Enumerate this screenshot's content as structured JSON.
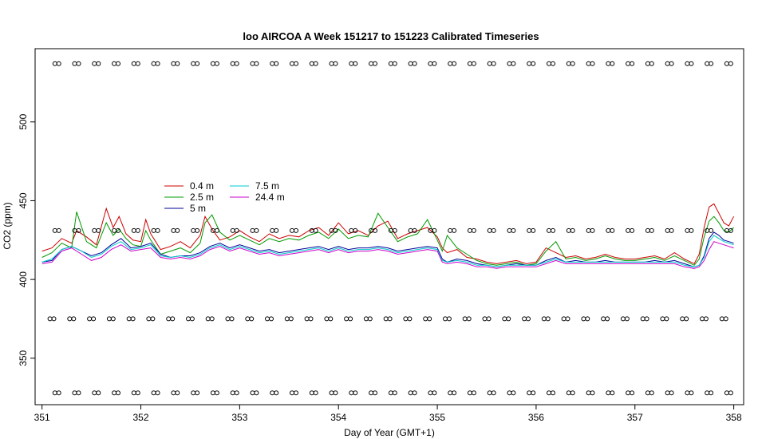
{
  "chart_data": {
    "type": "line",
    "title": "loo AIRCOA A  Week 151217 to 151223  Calibrated Timeseries",
    "xlabel": "Day of Year (GMT+1)",
    "ylabel": "CO2 (ppm)",
    "xlim": [
      350.93,
      358.1
    ],
    "ylim": [
      320.5,
      546.5
    ],
    "x_ticks": [
      "351",
      "352",
      "353",
      "354",
      "355",
      "356",
      "357",
      "358"
    ],
    "y_ticks": [
      "350",
      "400",
      "450",
      "500"
    ],
    "legend_position": "upper-left",
    "series": [
      {
        "name": "0.4 m",
        "color": "#cc0000",
        "x": [
          351.0,
          351.1,
          351.2,
          351.3,
          351.35,
          351.45,
          351.55,
          351.65,
          351.72,
          351.78,
          351.85,
          351.92,
          352.0,
          352.05,
          352.1,
          352.2,
          352.3,
          352.4,
          352.5,
          352.6,
          352.65,
          352.72,
          352.8,
          352.9,
          353.0,
          353.1,
          353.2,
          353.3,
          353.4,
          353.5,
          353.6,
          353.7,
          353.8,
          353.9,
          354.0,
          354.1,
          354.2,
          354.3,
          354.4,
          354.5,
          354.6,
          354.7,
          354.8,
          354.9,
          355.0,
          355.05,
          355.1,
          355.2,
          355.3,
          355.4,
          355.5,
          355.6,
          355.7,
          355.8,
          355.9,
          356.0,
          356.1,
          356.2,
          356.3,
          356.4,
          356.5,
          356.6,
          356.7,
          356.8,
          356.9,
          357.0,
          357.1,
          357.2,
          357.3,
          357.4,
          357.5,
          357.6,
          357.65,
          357.7,
          357.75,
          357.8,
          357.85,
          357.9,
          357.95,
          358.0
        ],
        "y": [
          418,
          420,
          426,
          423,
          431,
          427,
          422,
          445,
          433,
          440,
          429,
          425,
          424,
          438,
          429,
          419,
          421,
          424,
          420,
          428,
          440,
          432,
          425,
          427,
          431,
          427,
          424,
          429,
          426,
          428,
          427,
          431,
          433,
          428,
          436,
          429,
          431,
          428,
          434,
          437,
          426,
          429,
          431,
          433,
          427,
          420,
          417,
          419,
          414,
          413,
          411,
          410,
          411,
          412,
          410,
          411,
          420,
          417,
          414,
          415,
          413,
          414,
          416,
          414,
          413,
          413,
          414,
          415,
          413,
          417,
          413,
          410,
          416,
          433,
          446,
          448,
          442,
          436,
          434,
          440
        ]
      },
      {
        "name": "2.5 m",
        "color": "#009900",
        "x": [
          351.0,
          351.1,
          351.2,
          351.3,
          351.35,
          351.45,
          351.55,
          351.65,
          351.72,
          351.78,
          351.85,
          351.92,
          352.0,
          352.05,
          352.1,
          352.2,
          352.3,
          352.4,
          352.5,
          352.6,
          352.65,
          352.72,
          352.8,
          352.9,
          353.0,
          353.1,
          353.2,
          353.3,
          353.4,
          353.5,
          353.6,
          353.7,
          353.8,
          353.9,
          354.0,
          354.1,
          354.2,
          354.3,
          354.4,
          354.5,
          354.6,
          354.7,
          354.8,
          354.9,
          355.0,
          355.05,
          355.1,
          355.2,
          355.3,
          355.4,
          355.5,
          355.6,
          355.7,
          355.8,
          355.9,
          356.0,
          356.1,
          356.2,
          356.3,
          356.4,
          356.5,
          356.6,
          356.7,
          356.8,
          356.9,
          357.0,
          357.1,
          357.2,
          357.3,
          357.4,
          357.5,
          357.6,
          357.65,
          357.7,
          357.75,
          357.8,
          357.85,
          357.9,
          357.95,
          358.0
        ],
        "y": [
          414,
          417,
          423,
          420,
          443,
          424,
          420,
          436,
          428,
          432,
          426,
          422,
          421,
          431,
          425,
          416,
          418,
          420,
          417,
          423,
          436,
          441,
          430,
          425,
          428,
          425,
          422,
          426,
          424,
          426,
          425,
          428,
          430,
          426,
          432,
          426,
          428,
          427,
          442,
          433,
          424,
          427,
          429,
          438,
          425,
          418,
          428,
          420,
          416,
          412,
          410,
          409,
          410,
          411,
          409,
          410,
          418,
          424,
          413,
          414,
          412,
          413,
          415,
          413,
          412,
          412,
          413,
          414,
          412,
          415,
          412,
          409,
          413,
          427,
          437,
          440,
          436,
          431,
          430,
          433
        ]
      },
      {
        "name": "5 m",
        "color": "#000099",
        "x": [
          351.0,
          351.1,
          351.2,
          351.3,
          351.4,
          351.5,
          351.6,
          351.7,
          351.8,
          351.9,
          352.0,
          352.1,
          352.2,
          352.3,
          352.4,
          352.5,
          352.6,
          352.7,
          352.8,
          352.9,
          353.0,
          353.1,
          353.2,
          353.3,
          353.4,
          353.5,
          353.6,
          353.7,
          353.8,
          353.9,
          354.0,
          354.1,
          354.2,
          354.3,
          354.4,
          354.5,
          354.6,
          354.7,
          354.8,
          354.9,
          355.0,
          355.05,
          355.1,
          355.2,
          355.3,
          355.4,
          355.5,
          355.6,
          355.7,
          355.8,
          355.9,
          356.0,
          356.1,
          356.2,
          356.3,
          356.4,
          356.5,
          356.6,
          356.7,
          356.8,
          356.9,
          357.0,
          357.1,
          357.2,
          357.3,
          357.4,
          357.5,
          357.6,
          357.65,
          357.7,
          357.75,
          357.8,
          357.85,
          357.9,
          357.95,
          358.0
        ],
        "y": [
          411,
          412,
          419,
          421,
          418,
          415,
          417,
          422,
          426,
          420,
          421,
          423,
          416,
          414,
          415,
          415,
          417,
          421,
          423,
          420,
          422,
          420,
          418,
          419,
          417,
          418,
          419,
          420,
          421,
          419,
          421,
          419,
          420,
          420,
          421,
          420,
          418,
          419,
          420,
          421,
          420,
          413,
          411,
          413,
          412,
          410,
          409,
          408,
          409,
          410,
          409,
          409,
          412,
          414,
          411,
          412,
          411,
          411,
          412,
          411,
          411,
          411,
          411,
          412,
          411,
          412,
          410,
          408,
          409,
          415,
          426,
          430,
          428,
          425,
          424,
          423
        ]
      },
      {
        "name": "7.5 m",
        "color": "#00cccc",
        "x": [
          351.0,
          351.1,
          351.2,
          351.3,
          351.4,
          351.5,
          351.6,
          351.7,
          351.8,
          351.9,
          352.0,
          352.1,
          352.2,
          352.3,
          352.4,
          352.5,
          352.6,
          352.7,
          352.8,
          352.9,
          353.0,
          353.1,
          353.2,
          353.3,
          353.4,
          353.5,
          353.6,
          353.7,
          353.8,
          353.9,
          354.0,
          354.1,
          354.2,
          354.3,
          354.4,
          354.5,
          354.6,
          354.7,
          354.8,
          354.9,
          355.0,
          355.05,
          355.1,
          355.2,
          355.3,
          355.4,
          355.5,
          355.6,
          355.7,
          355.8,
          355.9,
          356.0,
          356.1,
          356.2,
          356.3,
          356.4,
          356.5,
          356.6,
          356.7,
          356.8,
          356.9,
          357.0,
          357.1,
          357.2,
          357.3,
          357.4,
          357.5,
          357.6,
          357.65,
          357.7,
          357.75,
          357.8,
          357.85,
          357.9,
          357.95,
          358.0
        ],
        "y": [
          411,
          413,
          419,
          421,
          418,
          414,
          416,
          421,
          424,
          419,
          420,
          422,
          415,
          414,
          415,
          414,
          416,
          420,
          422,
          419,
          421,
          419,
          417,
          418,
          416,
          417,
          418,
          419,
          420,
          418,
          420,
          418,
          419,
          419,
          420,
          419,
          417,
          418,
          419,
          420,
          419,
          412,
          411,
          412,
          411,
          409,
          409,
          408,
          409,
          409,
          409,
          409,
          411,
          413,
          411,
          411,
          411,
          411,
          411,
          411,
          411,
          411,
          411,
          411,
          411,
          411,
          409,
          408,
          409,
          414,
          424,
          428,
          426,
          424,
          423,
          422
        ]
      },
      {
        "name": "24.4 m",
        "color": "#cc00cc",
        "x": [
          351.0,
          351.1,
          351.2,
          351.3,
          351.4,
          351.5,
          351.6,
          351.7,
          351.8,
          351.9,
          352.0,
          352.1,
          352.2,
          352.3,
          352.4,
          352.5,
          352.6,
          352.7,
          352.8,
          352.9,
          353.0,
          353.1,
          353.2,
          353.3,
          353.4,
          353.5,
          353.6,
          353.7,
          353.8,
          353.9,
          354.0,
          354.1,
          354.2,
          354.3,
          354.4,
          354.5,
          354.6,
          354.7,
          354.8,
          354.9,
          355.0,
          355.05,
          355.1,
          355.2,
          355.3,
          355.4,
          355.5,
          355.6,
          355.7,
          355.8,
          355.9,
          356.0,
          356.1,
          356.2,
          356.3,
          356.4,
          356.5,
          356.6,
          356.7,
          356.8,
          356.9,
          357.0,
          357.1,
          357.2,
          357.3,
          357.4,
          357.5,
          357.6,
          357.65,
          357.7,
          357.75,
          357.8,
          357.85,
          357.9,
          357.95,
          358.0
        ],
        "y": [
          410,
          411,
          418,
          420,
          416,
          412,
          414,
          419,
          422,
          418,
          419,
          420,
          414,
          413,
          414,
          413,
          415,
          419,
          421,
          418,
          420,
          418,
          416,
          417,
          415,
          416,
          417,
          418,
          419,
          417,
          419,
          417,
          418,
          418,
          419,
          418,
          416,
          417,
          418,
          419,
          418,
          411,
          410,
          411,
          410,
          408,
          408,
          407,
          408,
          408,
          408,
          408,
          410,
          412,
          410,
          410,
          410,
          410,
          410,
          410,
          410,
          410,
          410,
          410,
          410,
          410,
          408,
          407,
          408,
          412,
          419,
          424,
          423,
          422,
          421,
          420
        ]
      }
    ],
    "markers": {
      "style": "open-circle",
      "rows": [
        {
          "y": 537,
          "x": [
            351.15,
            351.35,
            351.55,
            351.75,
            351.95,
            352.15,
            352.35,
            352.55,
            352.75,
            352.95,
            353.15,
            353.35,
            353.55,
            353.75,
            353.95,
            354.15,
            354.35,
            354.55,
            354.75,
            354.95,
            355.15,
            355.35,
            355.55,
            355.75,
            355.95,
            356.15,
            356.35,
            356.55,
            356.75,
            356.95,
            357.15,
            357.35,
            357.55,
            357.75,
            357.95
          ]
        },
        {
          "y": 431,
          "x": [
            351.15,
            351.35,
            351.55,
            351.75,
            351.95,
            352.15,
            352.35,
            352.55,
            352.75,
            352.95,
            353.15,
            353.35,
            353.55,
            353.75,
            353.95,
            354.15,
            354.35,
            354.55,
            354.75,
            354.95,
            355.15,
            355.35,
            355.55,
            355.75,
            355.95,
            356.15,
            356.35,
            356.55,
            356.75,
            356.95,
            357.15,
            357.35,
            357.55,
            357.75,
            357.95
          ]
        },
        {
          "y": 375,
          "x": [
            351.1,
            351.3,
            351.5,
            351.7,
            351.9,
            352.1,
            352.3,
            352.5,
            352.7,
            352.9,
            353.1,
            353.3,
            353.5,
            353.7,
            353.9,
            354.1,
            354.3,
            354.5,
            354.7,
            354.9,
            355.1,
            355.3,
            355.5,
            355.7,
            355.9,
            356.1,
            356.3,
            356.5,
            356.7,
            356.9,
            357.1,
            357.3,
            357.5,
            357.7,
            357.9
          ]
        },
        {
          "y": 328,
          "x": [
            351.15,
            351.35,
            351.55,
            351.75,
            351.95,
            352.15,
            352.35,
            352.55,
            352.75,
            352.95,
            353.15,
            353.35,
            353.55,
            353.75,
            353.95,
            354.15,
            354.35,
            354.55,
            354.75,
            354.95,
            355.15,
            355.35,
            355.55,
            355.75,
            355.95,
            356.15,
            356.35,
            356.55,
            356.75,
            356.95,
            357.15,
            357.35,
            357.55,
            357.75,
            357.95
          ]
        }
      ]
    }
  }
}
